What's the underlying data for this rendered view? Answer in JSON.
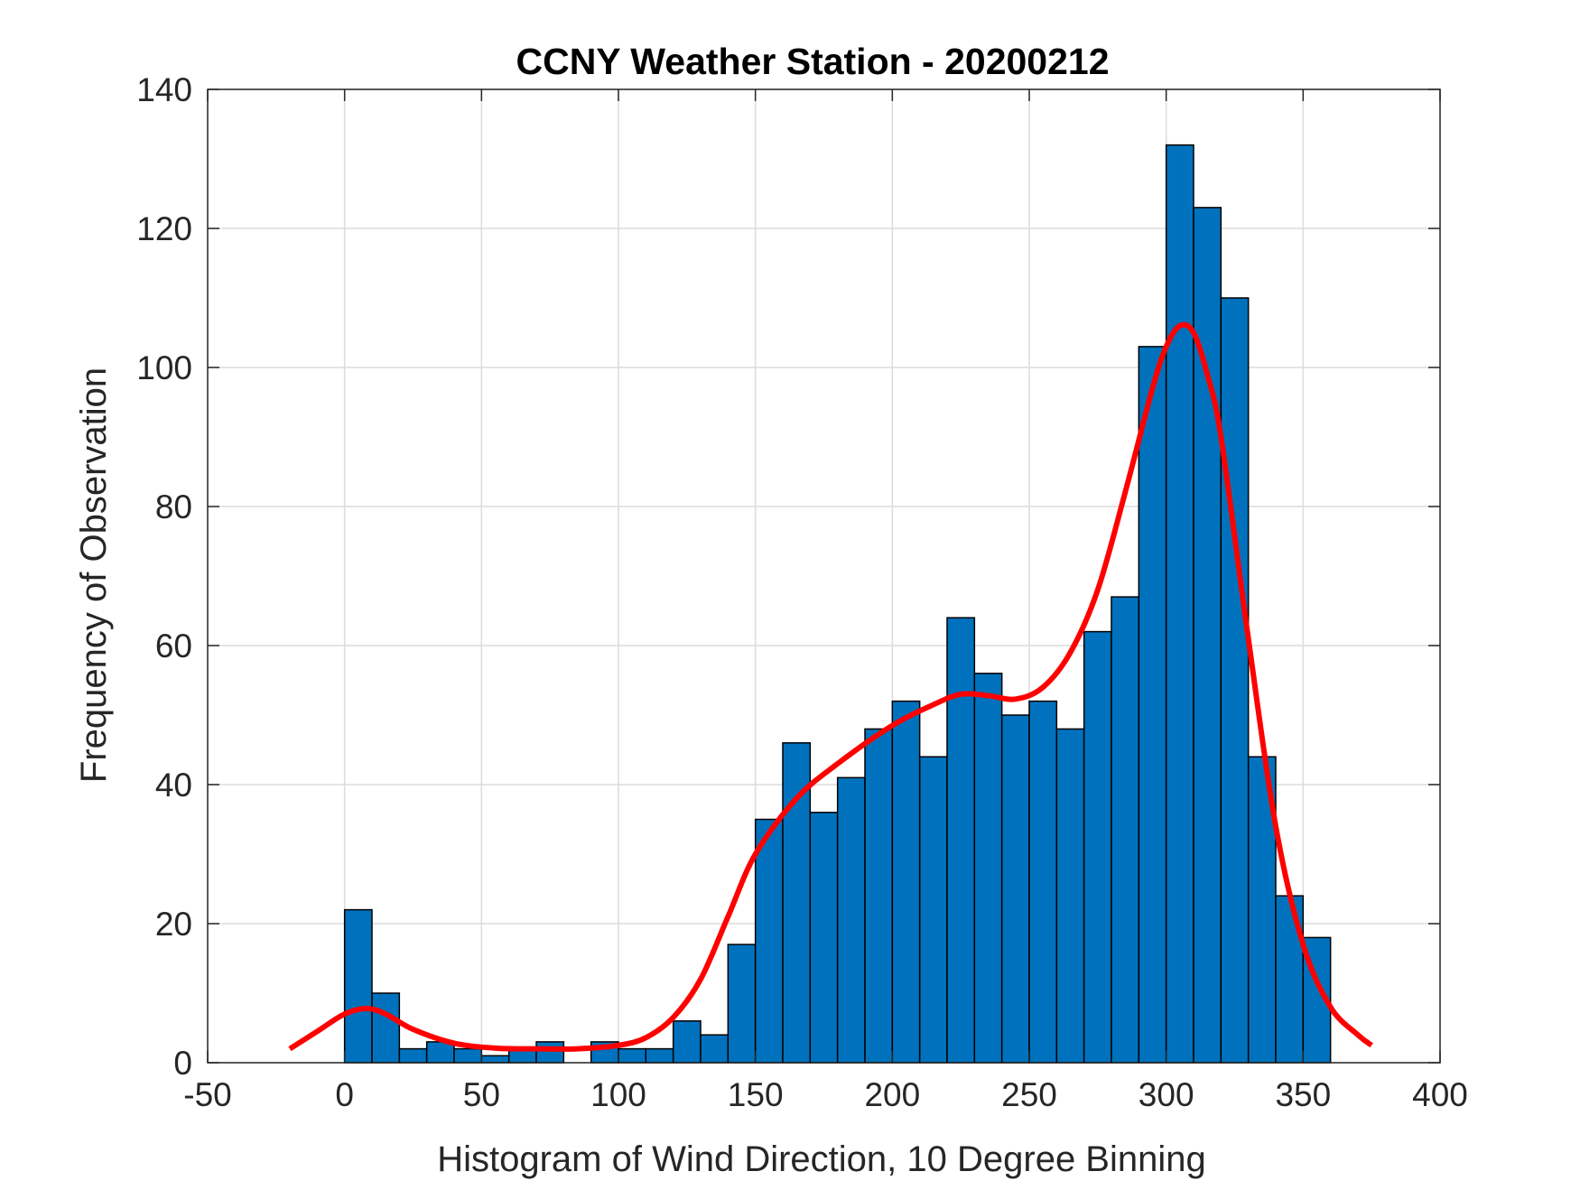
{
  "chart_data": {
    "type": "bar",
    "title": "CCNY Weather Station - 20200212",
    "xlabel": "Histogram of Wind Direction, 10 Degree Binning",
    "ylabel": "Frequency of Observation",
    "xlim": [
      -50,
      400
    ],
    "ylim": [
      0,
      140
    ],
    "xticks": [
      -50,
      0,
      50,
      100,
      150,
      200,
      250,
      300,
      350,
      400
    ],
    "yticks": [
      0,
      20,
      40,
      60,
      80,
      100,
      120,
      140
    ],
    "xtick_labels": [
      "-50",
      "0",
      "50",
      "100",
      "150",
      "200",
      "250",
      "300",
      "350",
      "400"
    ],
    "ytick_labels": [
      "0",
      "20",
      "40",
      "60",
      "80",
      "100",
      "120",
      "140"
    ],
    "grid": true,
    "bin_width": 10,
    "bin_edges_start": [
      0,
      10,
      20,
      30,
      40,
      50,
      60,
      70,
      80,
      90,
      100,
      110,
      120,
      130,
      140,
      150,
      160,
      170,
      180,
      190,
      200,
      210,
      220,
      230,
      240,
      250,
      260,
      270,
      280,
      290,
      300,
      310,
      320,
      330,
      340,
      350
    ],
    "values": [
      22,
      10,
      2,
      3,
      2,
      1,
      2,
      3,
      0,
      3,
      2,
      2,
      6,
      4,
      17,
      35,
      46,
      36,
      41,
      48,
      52,
      44,
      64,
      56,
      50,
      52,
      48,
      62,
      67,
      103,
      132,
      123,
      110,
      44,
      24,
      18
    ],
    "bar_color": "#0072BD",
    "bar_edge_color": "#000000",
    "series": [
      {
        "name": "density fit",
        "type": "line",
        "color": "#FF0000",
        "x": [
          -20,
          -10,
          0,
          8,
          15,
          25,
          40,
          55,
          70,
          85,
          100,
          110,
          120,
          130,
          140,
          150,
          165,
          180,
          200,
          215,
          225,
          235,
          245,
          255,
          265,
          275,
          285,
          295,
          300,
          305,
          310,
          315,
          320,
          330,
          340,
          350,
          360,
          370,
          375
        ],
        "y": [
          2,
          4.5,
          7,
          7.8,
          7,
          4.8,
          2.8,
          2.1,
          2,
          2,
          2.5,
          3.6,
          6.5,
          12,
          21,
          30,
          38,
          43,
          48.5,
          51.5,
          53,
          52.8,
          52.3,
          54,
          59,
          68,
          82,
          97,
          103,
          106,
          105,
          99,
          90,
          61,
          34,
          17,
          8,
          4,
          2.5
        ]
      }
    ]
  }
}
